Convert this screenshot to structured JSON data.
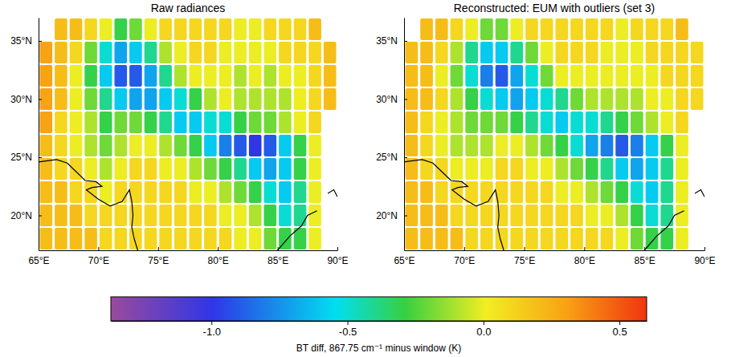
{
  "chart_data": [
    {
      "type": "heatmap",
      "title": "Raw radiances",
      "xlim": [
        65,
        90
      ],
      "ylim": [
        17,
        37
      ],
      "xticks": [
        {
          "value": 65,
          "label": "65°E"
        },
        {
          "value": 70,
          "label": "70°E"
        },
        {
          "value": 75,
          "label": "75°E"
        },
        {
          "value": 80,
          "label": "80°E"
        },
        {
          "value": 85,
          "label": "85°E"
        },
        {
          "value": 90,
          "label": "90°E"
        }
      ],
      "yticks": [
        {
          "value": 20,
          "label": "20°N"
        },
        {
          "value": 25,
          "label": "25°N"
        },
        {
          "value": 30,
          "label": "30°N"
        },
        {
          "value": 35,
          "label": "35°N"
        }
      ],
      "x_bins": [
        65,
        66.25,
        67.5,
        68.75,
        70,
        71.25,
        72.5,
        73.75,
        75,
        76.25,
        77.5,
        78.75,
        80,
        81.25,
        82.5,
        83.75,
        85,
        86.25,
        87.5,
        88.75,
        90
      ],
      "y_bins": [
        17,
        19,
        21,
        23,
        25,
        27,
        29,
        31,
        33,
        35,
        37
      ],
      "cells": [
        [
          0.2,
          0.2,
          0.2,
          0.2,
          0.1,
          0.1,
          0.1,
          0.1,
          0.1,
          0.1,
          0.1,
          0.1,
          0.1,
          0.0,
          0.0,
          -0.2,
          -0.3,
          -0.3,
          0.0,
          null
        ],
        [
          0.2,
          0.2,
          0.2,
          0.1,
          0.1,
          0.1,
          0.1,
          0.1,
          0.1,
          0.1,
          0.1,
          0.1,
          0.0,
          0.0,
          -0.1,
          -0.3,
          -0.5,
          -0.4,
          0.0,
          null
        ],
        [
          0.2,
          0.2,
          0.1,
          0.1,
          0.0,
          0.1,
          0.1,
          0.1,
          0.1,
          0.1,
          0.0,
          0.0,
          -0.1,
          -0.2,
          -0.3,
          -0.5,
          -0.6,
          -0.4,
          0.0,
          null
        ],
        [
          0.2,
          0.1,
          0.1,
          0.0,
          -0.1,
          0.0,
          0.1,
          0.1,
          0.0,
          0.0,
          -0.1,
          -0.2,
          -0.3,
          -0.4,
          -0.6,
          -0.7,
          -0.6,
          -0.3,
          0.0,
          null
        ],
        [
          0.2,
          0.1,
          0.0,
          -0.1,
          -0.2,
          -0.1,
          0.0,
          0.0,
          -0.1,
          -0.2,
          -0.3,
          -0.6,
          -0.8,
          -0.9,
          -1.0,
          -0.9,
          -0.6,
          -0.3,
          0.0,
          null
        ],
        [
          0.3,
          0.1,
          0.0,
          -0.1,
          -0.3,
          -0.2,
          -0.2,
          -0.3,
          -0.4,
          -0.6,
          -0.6,
          -0.5,
          -0.5,
          -0.3,
          -0.2,
          -0.2,
          -0.1,
          0.0,
          0.1,
          null
        ],
        [
          0.3,
          0.2,
          0.0,
          -0.2,
          -0.4,
          -0.6,
          -0.7,
          -0.7,
          -0.6,
          -0.5,
          -0.3,
          -0.1,
          0.0,
          -0.1,
          -0.1,
          -0.1,
          -0.1,
          0.0,
          0.1,
          0.2
        ],
        [
          0.3,
          0.2,
          0.0,
          -0.3,
          -0.6,
          -0.9,
          -0.9,
          -0.7,
          -0.4,
          -0.1,
          0.0,
          0.0,
          0.0,
          -0.1,
          0.0,
          -0.1,
          0.0,
          0.0,
          0.1,
          0.2
        ],
        [
          0.3,
          0.2,
          0.1,
          -0.2,
          -0.5,
          -0.7,
          -0.6,
          -0.4,
          -0.1,
          0.0,
          0.1,
          0.1,
          0.0,
          0.0,
          0.0,
          0.0,
          0.1,
          0.1,
          0.1,
          0.2
        ],
        [
          null,
          0.2,
          0.2,
          0.1,
          0.0,
          -0.3,
          -0.2,
          0.0,
          0.1,
          0.1,
          0.1,
          0.1,
          0.1,
          0.0,
          0.0,
          0.1,
          0.1,
          0.1,
          0.2,
          null
        ]
      ],
      "coastlines": [
        [
          [
            65,
            24.6
          ],
          [
            66.5,
            24.8
          ],
          [
            67.4,
            24.5
          ],
          [
            68.3,
            23.6
          ],
          [
            68.9,
            23.0
          ],
          [
            69.8,
            22.9
          ],
          [
            70.3,
            22.5
          ],
          [
            69.5,
            22.4
          ],
          [
            69.0,
            22.2
          ],
          [
            70.0,
            21.4
          ],
          [
            71.0,
            20.8
          ],
          [
            72.0,
            21.2
          ],
          [
            72.6,
            22.2
          ],
          [
            72.8,
            21.2
          ],
          [
            72.9,
            20.0
          ],
          [
            72.8,
            19.0
          ],
          [
            73.0,
            18.0
          ],
          [
            73.3,
            17.0
          ]
        ],
        [
          [
            85.0,
            17.0
          ],
          [
            86.0,
            18.2
          ],
          [
            87.0,
            19.1
          ],
          [
            87.5,
            20.0
          ],
          [
            88.3,
            20.4
          ]
        ],
        [
          [
            89.2,
            21.9
          ],
          [
            89.7,
            22.2
          ],
          [
            90.0,
            21.6
          ]
        ]
      ]
    },
    {
      "type": "heatmap",
      "title": "Reconstructed: EUM with outliers (set 3)",
      "xlim": [
        65,
        90
      ],
      "ylim": [
        17,
        37
      ],
      "xticks": [
        {
          "value": 65,
          "label": "65°E"
        },
        {
          "value": 70,
          "label": "70°E"
        },
        {
          "value": 75,
          "label": "75°E"
        },
        {
          "value": 80,
          "label": "80°E"
        },
        {
          "value": 85,
          "label": "85°E"
        },
        {
          "value": 90,
          "label": "90°E"
        }
      ],
      "yticks": [
        {
          "value": 20,
          "label": "20°N"
        },
        {
          "value": 25,
          "label": "25°N"
        },
        {
          "value": 30,
          "label": "30°N"
        },
        {
          "value": 35,
          "label": "35°N"
        }
      ],
      "x_bins": [
        65,
        66.25,
        67.5,
        68.75,
        70,
        71.25,
        72.5,
        73.75,
        75,
        76.25,
        77.5,
        78.75,
        80,
        81.25,
        82.5,
        83.75,
        85,
        86.25,
        87.5,
        88.75,
        90
      ],
      "y_bins": [
        17,
        19,
        21,
        23,
        25,
        27,
        29,
        31,
        33,
        35,
        37
      ],
      "cells": [
        [
          0.2,
          0.2,
          0.2,
          0.2,
          0.1,
          0.1,
          0.1,
          0.1,
          0.1,
          0.1,
          0.1,
          0.1,
          0.1,
          0.1,
          0.0,
          -0.2,
          -0.3,
          -0.3,
          0.0,
          null
        ],
        [
          0.2,
          0.2,
          0.2,
          0.1,
          0.1,
          0.1,
          0.1,
          0.1,
          0.1,
          0.1,
          0.1,
          0.1,
          0.0,
          0.0,
          -0.1,
          -0.3,
          -0.5,
          -0.4,
          0.0,
          null
        ],
        [
          0.2,
          0.2,
          0.1,
          0.1,
          0.1,
          0.1,
          0.1,
          0.1,
          0.1,
          0.1,
          0.0,
          0.0,
          -0.1,
          -0.2,
          -0.3,
          -0.5,
          -0.6,
          -0.4,
          0.0,
          null
        ],
        [
          0.2,
          0.1,
          0.1,
          0.0,
          0.0,
          0.0,
          0.1,
          0.1,
          0.0,
          0.0,
          -0.1,
          -0.2,
          -0.3,
          -0.4,
          -0.6,
          -0.7,
          -0.6,
          -0.4,
          0.0,
          null
        ],
        [
          0.2,
          0.1,
          0.0,
          -0.1,
          -0.1,
          -0.1,
          0.0,
          0.0,
          -0.1,
          -0.2,
          -0.3,
          -0.5,
          -0.7,
          -0.8,
          -0.9,
          -0.8,
          -0.6,
          -0.3,
          0.0,
          null
        ],
        [
          0.2,
          0.1,
          0.0,
          -0.1,
          -0.2,
          -0.2,
          -0.2,
          -0.3,
          -0.4,
          -0.5,
          -0.6,
          -0.5,
          -0.5,
          -0.4,
          -0.3,
          -0.2,
          -0.1,
          0.0,
          0.1,
          null
        ],
        [
          0.2,
          0.2,
          0.1,
          -0.1,
          -0.3,
          -0.5,
          -0.6,
          -0.7,
          -0.6,
          -0.5,
          -0.4,
          -0.2,
          -0.1,
          -0.1,
          -0.1,
          -0.1,
          0.0,
          0.0,
          0.1,
          0.1
        ],
        [
          0.2,
          0.2,
          0.0,
          -0.2,
          -0.5,
          -0.8,
          -0.9,
          -0.7,
          -0.5,
          -0.2,
          0.0,
          0.0,
          0.0,
          0.0,
          0.0,
          0.0,
          0.0,
          0.1,
          0.1,
          0.1
        ],
        [
          0.2,
          0.2,
          0.1,
          -0.1,
          -0.4,
          -0.6,
          -0.6,
          -0.4,
          -0.2,
          0.0,
          0.1,
          0.1,
          0.1,
          0.0,
          0.0,
          0.0,
          0.1,
          0.1,
          0.1,
          0.1
        ],
        [
          null,
          0.2,
          0.2,
          0.1,
          0.0,
          -0.2,
          -0.2,
          0.0,
          0.1,
          0.1,
          0.1,
          0.1,
          0.1,
          0.1,
          0.0,
          0.1,
          0.1,
          0.1,
          0.2,
          null
        ]
      ],
      "coastlines": [
        [
          [
            65,
            24.6
          ],
          [
            66.5,
            24.8
          ],
          [
            67.4,
            24.5
          ],
          [
            68.3,
            23.6
          ],
          [
            68.9,
            23.0
          ],
          [
            69.8,
            22.9
          ],
          [
            70.3,
            22.5
          ],
          [
            69.5,
            22.4
          ],
          [
            69.0,
            22.2
          ],
          [
            70.0,
            21.4
          ],
          [
            71.0,
            20.8
          ],
          [
            72.0,
            21.2
          ],
          [
            72.6,
            22.2
          ],
          [
            72.8,
            21.2
          ],
          [
            72.9,
            20.0
          ],
          [
            72.8,
            19.0
          ],
          [
            73.0,
            18.0
          ],
          [
            73.3,
            17.0
          ]
        ],
        [
          [
            85.0,
            17.0
          ],
          [
            86.0,
            18.2
          ],
          [
            87.0,
            19.1
          ],
          [
            87.5,
            20.0
          ],
          [
            88.3,
            20.4
          ]
        ],
        [
          [
            89.2,
            21.9
          ],
          [
            89.7,
            22.2
          ],
          [
            90.0,
            21.6
          ]
        ]
      ]
    }
  ],
  "colorbar": {
    "label": "BT diff, 867.75 cm⁻¹ minus window (K)",
    "range": [
      -1.37,
      0.6
    ],
    "ticks": [
      {
        "value": -1.0,
        "label": "-1.0"
      },
      -0.5,
      {
        "value": 0.0,
        "label": "0.0"
      },
      0.5
    ]
  }
}
